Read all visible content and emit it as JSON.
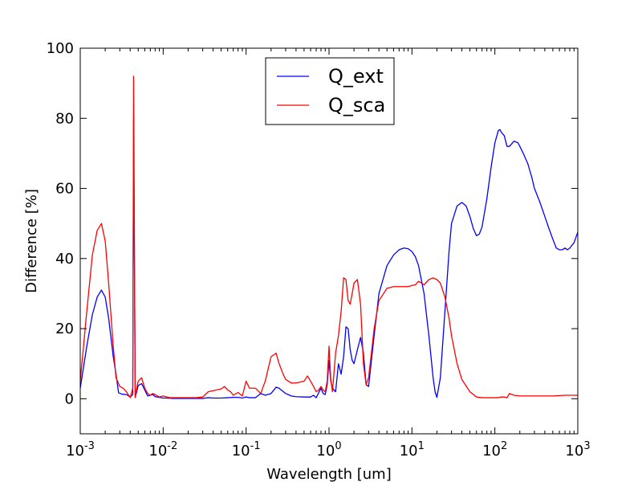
{
  "chart_data": {
    "type": "line",
    "title": "",
    "xlabel": "Wavelength [um]",
    "ylabel": "Difference [%]",
    "xscale": "log",
    "xlim": [
      0.001,
      1000
    ],
    "ylim": [
      -10,
      100
    ],
    "x_ticks": [
      0.001,
      0.01,
      0.1,
      1,
      10,
      100,
      1000
    ],
    "x_tick_labels": [
      {
        "base": "10",
        "exp": "-3"
      },
      {
        "base": "10",
        "exp": "-2"
      },
      {
        "base": "10",
        "exp": "-1"
      },
      {
        "base": "10",
        "exp": "0"
      },
      {
        "base": "10",
        "exp": "1"
      },
      {
        "base": "10",
        "exp": "2"
      },
      {
        "base": "10",
        "exp": "3"
      }
    ],
    "y_ticks": [
      0,
      20,
      40,
      60,
      80,
      100
    ],
    "y_tick_labels": [
      "0",
      "20",
      "40",
      "60",
      "80",
      "100"
    ],
    "grid": false,
    "legend_position": "top-center",
    "series": [
      {
        "name": "Q_ext",
        "color": "#0000ff",
        "x": [
          0.001,
          0.0012,
          0.0014,
          0.0016,
          0.0018,
          0.002,
          0.0022,
          0.0025,
          0.0027,
          0.0029,
          0.0032,
          0.0036,
          0.004,
          0.0043,
          0.0044,
          0.0045,
          0.0046,
          0.0048,
          0.005,
          0.0055,
          0.006,
          0.0065,
          0.007,
          0.0075,
          0.008,
          0.009,
          0.01,
          0.011,
          0.013,
          0.016,
          0.02,
          0.025,
          0.03,
          0.035,
          0.04,
          0.05,
          0.06,
          0.07,
          0.08,
          0.09,
          0.1,
          0.11,
          0.13,
          0.15,
          0.17,
          0.2,
          0.23,
          0.25,
          0.3,
          0.35,
          0.4,
          0.5,
          0.6,
          0.65,
          0.7,
          0.75,
          0.8,
          0.85,
          0.9,
          0.95,
          1.0,
          1.05,
          1.1,
          1.2,
          1.3,
          1.4,
          1.5,
          1.6,
          1.7,
          1.8,
          1.9,
          2.0,
          2.2,
          2.4,
          2.6,
          2.8,
          3.0,
          3.5,
          4.0,
          5.0,
          6.0,
          7.0,
          8.0,
          9.0,
          10,
          11,
          12,
          14,
          16,
          18,
          19,
          20,
          22,
          25,
          28,
          30,
          35,
          40,
          45,
          50,
          55,
          60,
          65,
          70,
          80,
          90,
          100,
          110,
          115,
          120,
          130,
          140,
          150,
          170,
          190,
          200,
          220,
          250,
          280,
          300,
          350,
          400,
          450,
          500,
          550,
          600,
          650,
          700,
          750,
          800,
          900,
          1000
        ],
        "y": [
          3.0,
          15.0,
          24.0,
          29.0,
          31.0,
          29.0,
          23.0,
          12.0,
          7.0,
          1.7,
          1.3,
          1.2,
          0.5,
          1.2,
          80.0,
          40.0,
          0.5,
          2.0,
          3.8,
          4.3,
          2.5,
          0.8,
          1.0,
          1.2,
          0.6,
          0.4,
          0.2,
          0.2,
          0.1,
          0.1,
          0.1,
          0.1,
          0.1,
          0.3,
          0.2,
          0.2,
          0.3,
          0.4,
          0.4,
          0.2,
          0.5,
          0.3,
          0.3,
          1.5,
          1.0,
          1.5,
          3.3,
          3.0,
          1.5,
          0.8,
          0.6,
          0.5,
          0.5,
          1.0,
          0.3,
          1.7,
          3.0,
          1.5,
          1.2,
          4.0,
          11.0,
          5.0,
          3.0,
          2.0,
          10.0,
          7.0,
          12.0,
          20.5,
          20.0,
          14.0,
          11.0,
          10.0,
          14.0,
          17.5,
          13.0,
          4.0,
          3.5,
          18.0,
          30.0,
          38.0,
          41.0,
          42.5,
          43.0,
          42.8,
          42.0,
          40.5,
          38.0,
          30.0,
          18.0,
          6.0,
          2.0,
          0.4,
          6.0,
          25.0,
          42.0,
          50.0,
          55.0,
          56.0,
          55.0,
          52.0,
          48.5,
          46.5,
          47.0,
          49.0,
          57.0,
          66.0,
          73.0,
          76.5,
          76.8,
          76.0,
          75.0,
          72.0,
          72.0,
          73.5,
          73.0,
          72.0,
          70.0,
          67.0,
          63.0,
          60.0,
          56.0,
          52.0,
          48.5,
          45.5,
          43.0,
          42.5,
          42.5,
          43.0,
          42.5,
          43.0,
          44.5,
          47.5
        ]
      },
      {
        "name": "Q_sca",
        "color": "#ff0000",
        "x": [
          0.001,
          0.0012,
          0.0014,
          0.0016,
          0.0018,
          0.002,
          0.0022,
          0.0025,
          0.0027,
          0.003,
          0.0033,
          0.0036,
          0.004,
          0.0043,
          0.0044,
          0.0045,
          0.0046,
          0.0048,
          0.005,
          0.0055,
          0.006,
          0.0065,
          0.007,
          0.0075,
          0.008,
          0.009,
          0.01,
          0.012,
          0.015,
          0.02,
          0.025,
          0.03,
          0.035,
          0.04,
          0.05,
          0.055,
          0.06,
          0.065,
          0.07,
          0.08,
          0.09,
          0.1,
          0.11,
          0.13,
          0.15,
          0.17,
          0.2,
          0.23,
          0.25,
          0.28,
          0.3,
          0.35,
          0.4,
          0.5,
          0.55,
          0.6,
          0.65,
          0.7,
          0.75,
          0.8,
          0.85,
          0.9,
          0.95,
          1.0,
          1.05,
          1.1,
          1.2,
          1.3,
          1.4,
          1.5,
          1.6,
          1.7,
          1.8,
          1.9,
          2.0,
          2.2,
          2.4,
          2.6,
          2.8,
          3.0,
          3.5,
          4.0,
          5.0,
          6.0,
          7.0,
          8.0,
          9.0,
          10,
          11,
          12,
          13,
          14,
          16,
          18,
          20,
          22,
          25,
          28,
          30,
          35,
          40,
          50,
          60,
          70,
          80,
          90,
          100,
          110,
          120,
          130,
          140,
          150,
          170,
          200,
          250,
          300,
          400,
          500,
          700,
          1000
        ],
        "y": [
          5.0,
          25.0,
          41.0,
          48.0,
          50.0,
          45.0,
          33.0,
          15.0,
          6.0,
          3.5,
          3.0,
          2.0,
          0.3,
          3.0,
          92.0,
          45.0,
          0.3,
          3.0,
          5.0,
          6.0,
          3.0,
          1.5,
          1.0,
          1.5,
          1.2,
          0.5,
          0.8,
          0.3,
          0.3,
          0.3,
          0.3,
          0.5,
          2.0,
          2.3,
          2.8,
          3.5,
          2.5,
          2.0,
          1.0,
          1.8,
          0.8,
          5.0,
          3.0,
          3.0,
          1.5,
          5.0,
          12.0,
          13.0,
          10.0,
          7.0,
          5.5,
          4.5,
          4.5,
          5.0,
          6.5,
          5.0,
          3.5,
          2.0,
          2.5,
          3.5,
          2.5,
          2.0,
          5.0,
          15.0,
          5.5,
          2.0,
          13.0,
          18.0,
          25.0,
          34.5,
          34.0,
          28.0,
          27.0,
          30.0,
          33.0,
          34.0,
          27.0,
          10.0,
          4.0,
          6.0,
          20.0,
          28.0,
          31.5,
          32.0,
          32.0,
          32.0,
          32.0,
          32.3,
          32.5,
          33.5,
          33.0,
          32.5,
          34.0,
          34.5,
          34.0,
          33.0,
          29.0,
          23.0,
          18.0,
          10.0,
          5.5,
          2.0,
          0.5,
          0.3,
          0.3,
          0.3,
          0.3,
          0.3,
          0.5,
          0.5,
          0.3,
          1.5,
          1.0,
          0.8,
          0.8,
          0.8,
          0.8,
          0.8,
          1.0,
          1.0
        ]
      }
    ]
  }
}
